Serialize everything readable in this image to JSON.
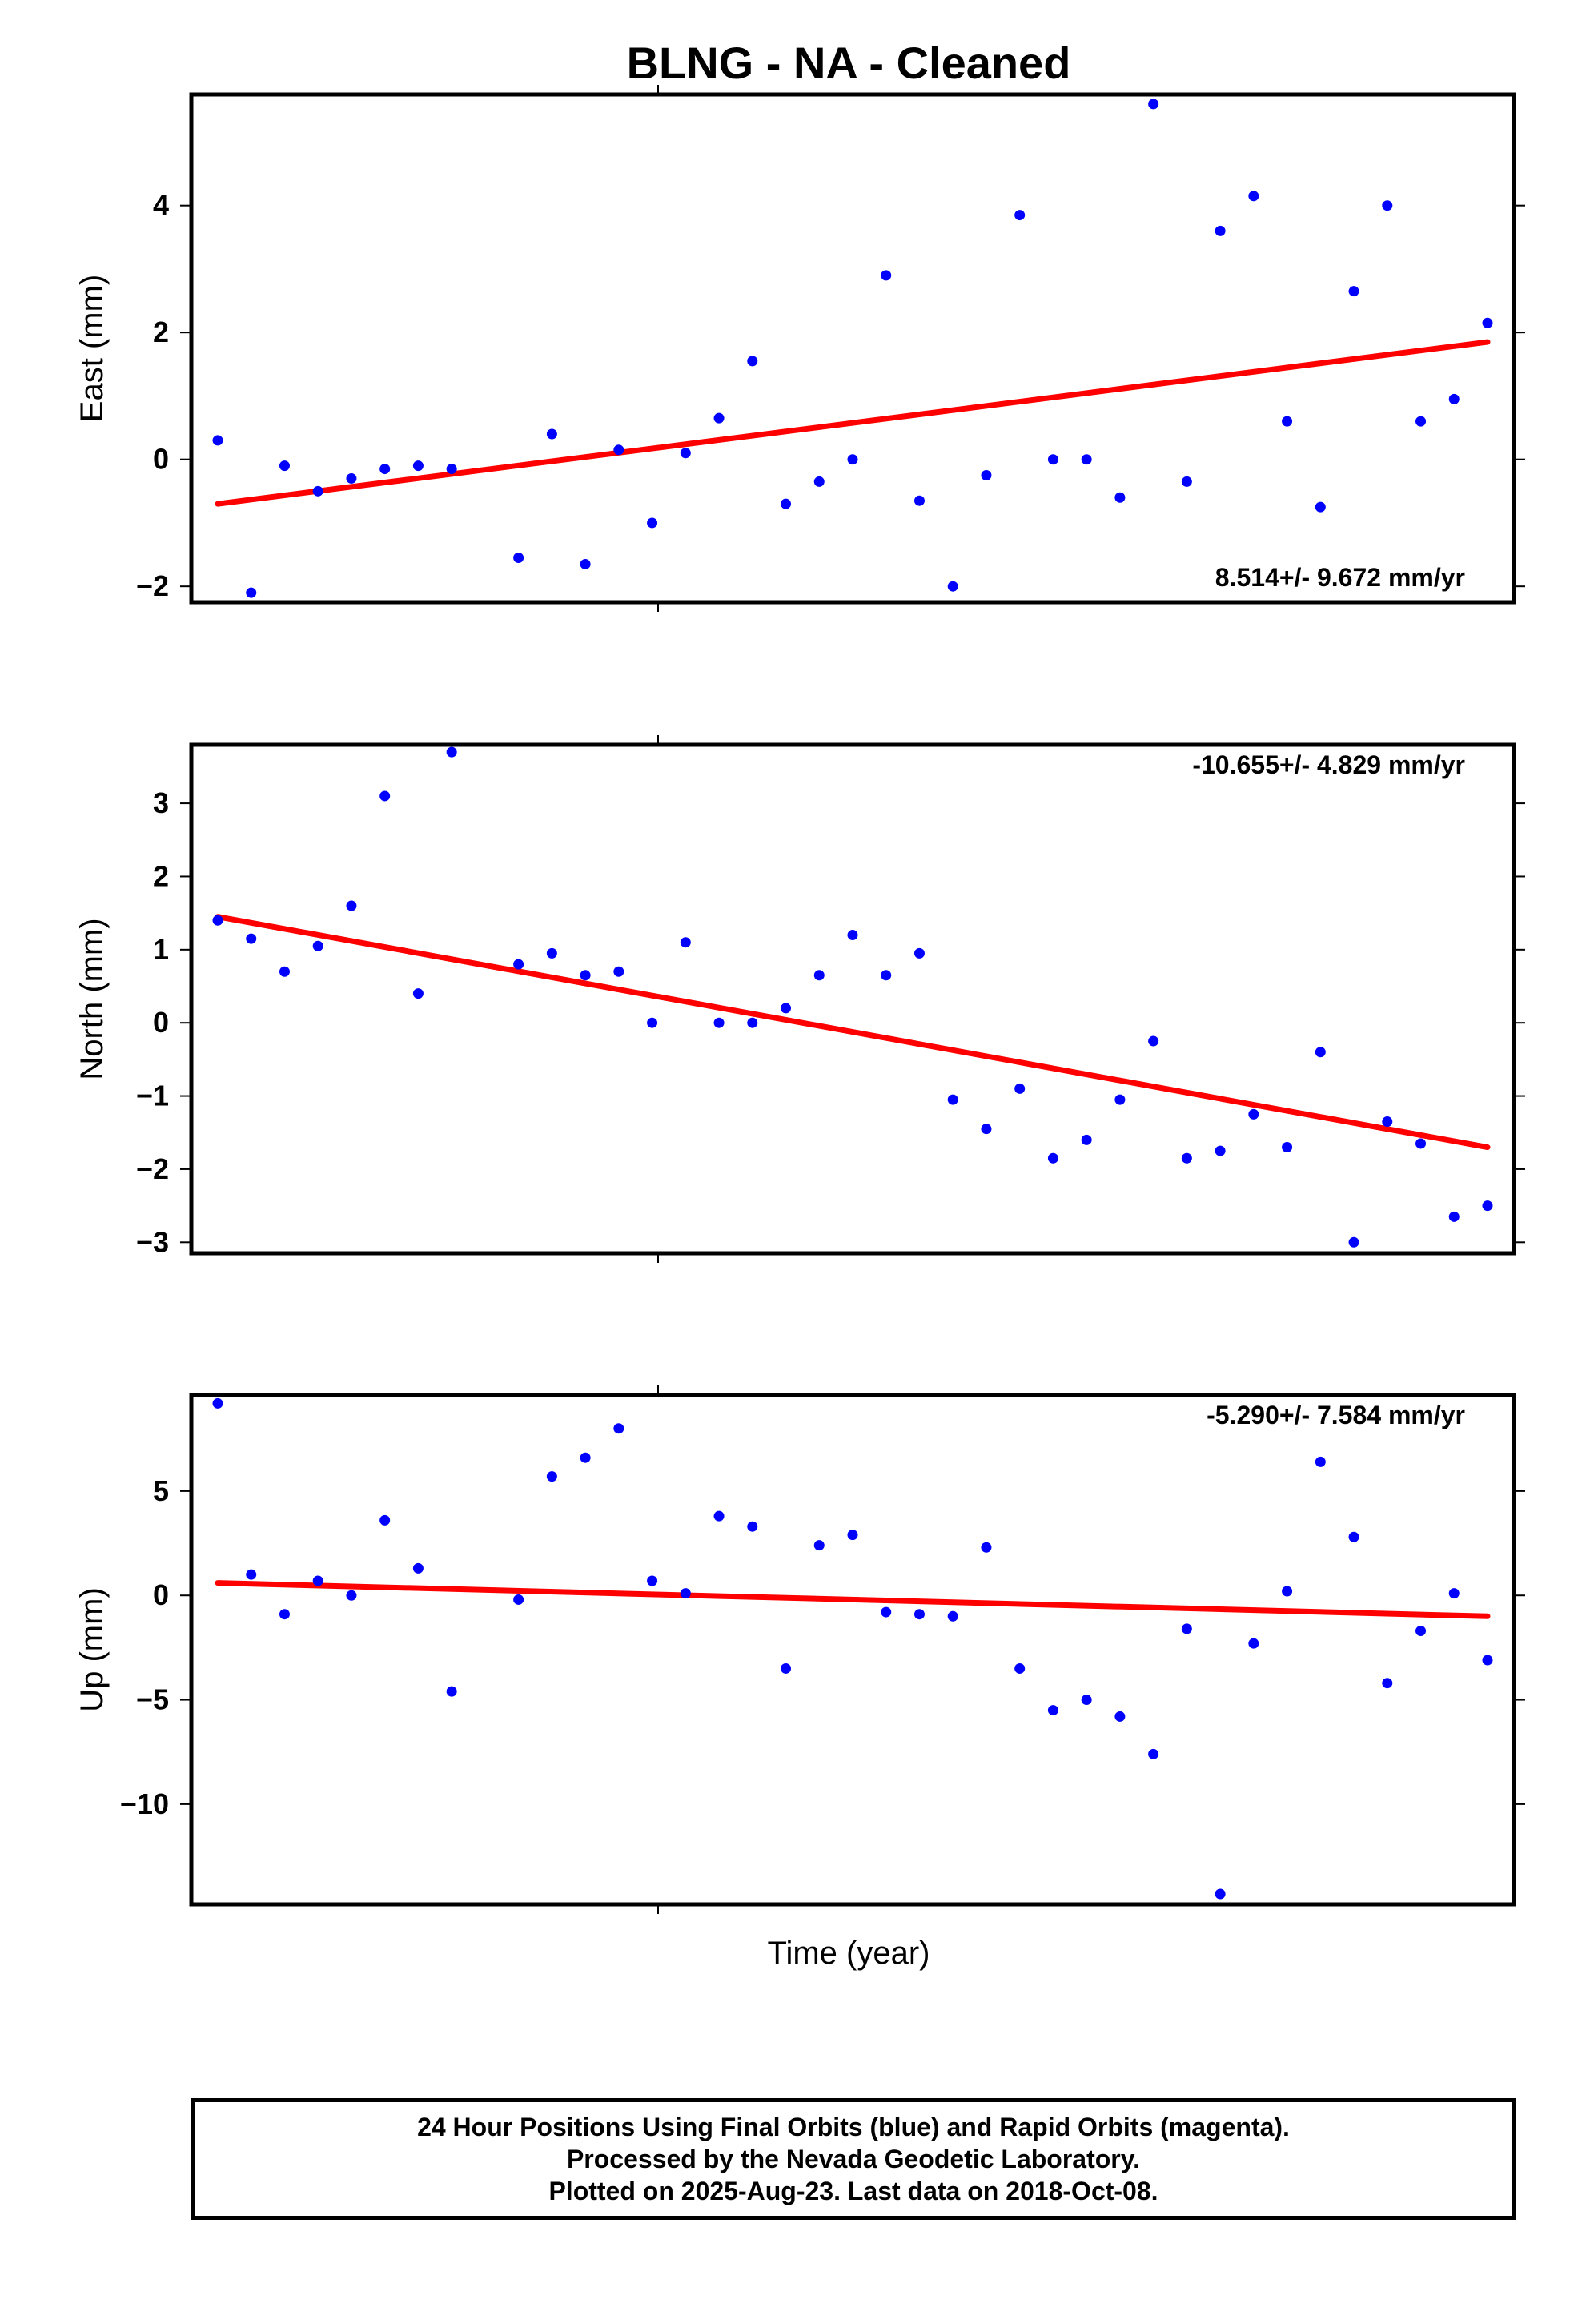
{
  "title": "BLNG  - NA - Cleaned",
  "xlabel": "Time (year)",
  "footer": {
    "line1": "24 Hour Positions Using Final Orbits (blue) and Rapid Orbits (magenta).",
    "line2": "Processed by the Nevada Geodetic Laboratory.",
    "line3": "Plotted on 2025-Aug-23. Last data on 2018-Oct-08."
  },
  "colors": {
    "points": "#0000ff",
    "trend": "#ff0000",
    "frame": "#000000"
  },
  "chart_data": [
    {
      "type": "scatter",
      "ylabel": "East (mm)",
      "rate_label": "8.514+/- 9.672 mm/yr",
      "ylim": [
        -2.25,
        5.75
      ],
      "yticks": [
        -2,
        0,
        2,
        4
      ],
      "ytick_labels": [
        "−2",
        "0",
        "2",
        "4"
      ],
      "x": [
        0,
        1,
        2,
        3,
        4,
        5,
        6,
        7,
        9,
        10,
        11,
        12,
        13,
        14,
        15,
        16,
        17,
        18,
        19,
        20,
        21,
        22,
        23,
        24,
        25,
        26,
        27,
        28,
        29,
        30,
        31,
        32,
        33,
        34,
        35,
        36,
        37,
        38
      ],
      "y": [
        0.3,
        -2.1,
        -0.1,
        -0.5,
        -0.3,
        -0.15,
        -0.1,
        -0.15,
        -1.55,
        0.4,
        -1.65,
        0.15,
        -1.0,
        0.1,
        0.65,
        1.55,
        -0.7,
        -0.35,
        0.0,
        2.9,
        -0.65,
        -2.0,
        -0.25,
        3.85,
        0.0,
        0.0,
        -0.6,
        5.6,
        -0.35,
        3.6,
        4.15,
        0.6,
        -0.75,
        2.65,
        4.0,
        0.6,
        0.95,
        2.15
      ],
      "trend": {
        "x": [
          0,
          38
        ],
        "y": [
          -0.7,
          1.85
        ]
      },
      "rate_position": "top"
    },
    {
      "type": "scatter",
      "ylabel": "North (mm)",
      "rate_label": "-10.655+/- 4.829 mm/yr",
      "ylim": [
        -3.15,
        3.8
      ],
      "yticks": [
        -3,
        -2,
        -1,
        0,
        1,
        2,
        3
      ],
      "ytick_labels": [
        "−3",
        "−2",
        "−1",
        "0",
        "1",
        "2",
        "3"
      ],
      "x": [
        0,
        1,
        2,
        3,
        4,
        5,
        6,
        7,
        9,
        10,
        11,
        12,
        13,
        14,
        15,
        16,
        17,
        18,
        19,
        20,
        21,
        22,
        23,
        24,
        25,
        26,
        27,
        28,
        29,
        30,
        31,
        32,
        33,
        34,
        35,
        36,
        37,
        38
      ],
      "y": [
        1.4,
        1.15,
        0.7,
        1.05,
        1.6,
        3.1,
        0.4,
        3.7,
        0.8,
        0.95,
        0.65,
        0.7,
        0.0,
        1.1,
        0.0,
        0.0,
        0.2,
        0.65,
        1.2,
        0.65,
        0.95,
        -1.05,
        -1.45,
        -0.9,
        -1.85,
        -1.6,
        -1.05,
        -0.25,
        -1.85,
        -1.75,
        -1.25,
        -1.7,
        -0.4,
        -3.0,
        -1.35,
        -1.65,
        -2.65,
        -2.5
      ],
      "trend": {
        "x": [
          0,
          38
        ],
        "y": [
          1.45,
          -1.7
        ]
      },
      "rate_position": "top"
    },
    {
      "type": "scatter",
      "ylabel": "Up (mm)",
      "rate_label": "-5.290+/- 7.584 mm/yr",
      "ylim": [
        -14.8,
        9.6
      ],
      "yticks": [
        -10,
        -5,
        0,
        5
      ],
      "ytick_labels": [
        "−10",
        "−5",
        "0",
        "5"
      ],
      "x": [
        0,
        1,
        2,
        3,
        4,
        5,
        6,
        7,
        9,
        10,
        11,
        12,
        13,
        14,
        15,
        16,
        17,
        18,
        19,
        20,
        21,
        22,
        23,
        24,
        25,
        26,
        27,
        28,
        29,
        30,
        31,
        32,
        33,
        34,
        35,
        36,
        37,
        38
      ],
      "y": [
        9.2,
        1.0,
        -0.9,
        0.7,
        0.0,
        3.6,
        1.3,
        -4.6,
        -0.2,
        5.7,
        6.6,
        8.0,
        0.7,
        0.1,
        3.8,
        3.3,
        -3.5,
        2.4,
        2.9,
        -0.8,
        -0.9,
        -1.0,
        2.3,
        -3.5,
        -5.5,
        -5.0,
        -5.8,
        -7.6,
        -1.6,
        -14.3,
        -2.3,
        0.2,
        6.4,
        2.8,
        -4.2,
        -1.7,
        0.1,
        -3.1
      ],
      "trend": {
        "x": [
          0,
          38
        ],
        "y": [
          0.6,
          -1.0
        ]
      },
      "rate_position": "top"
    }
  ]
}
